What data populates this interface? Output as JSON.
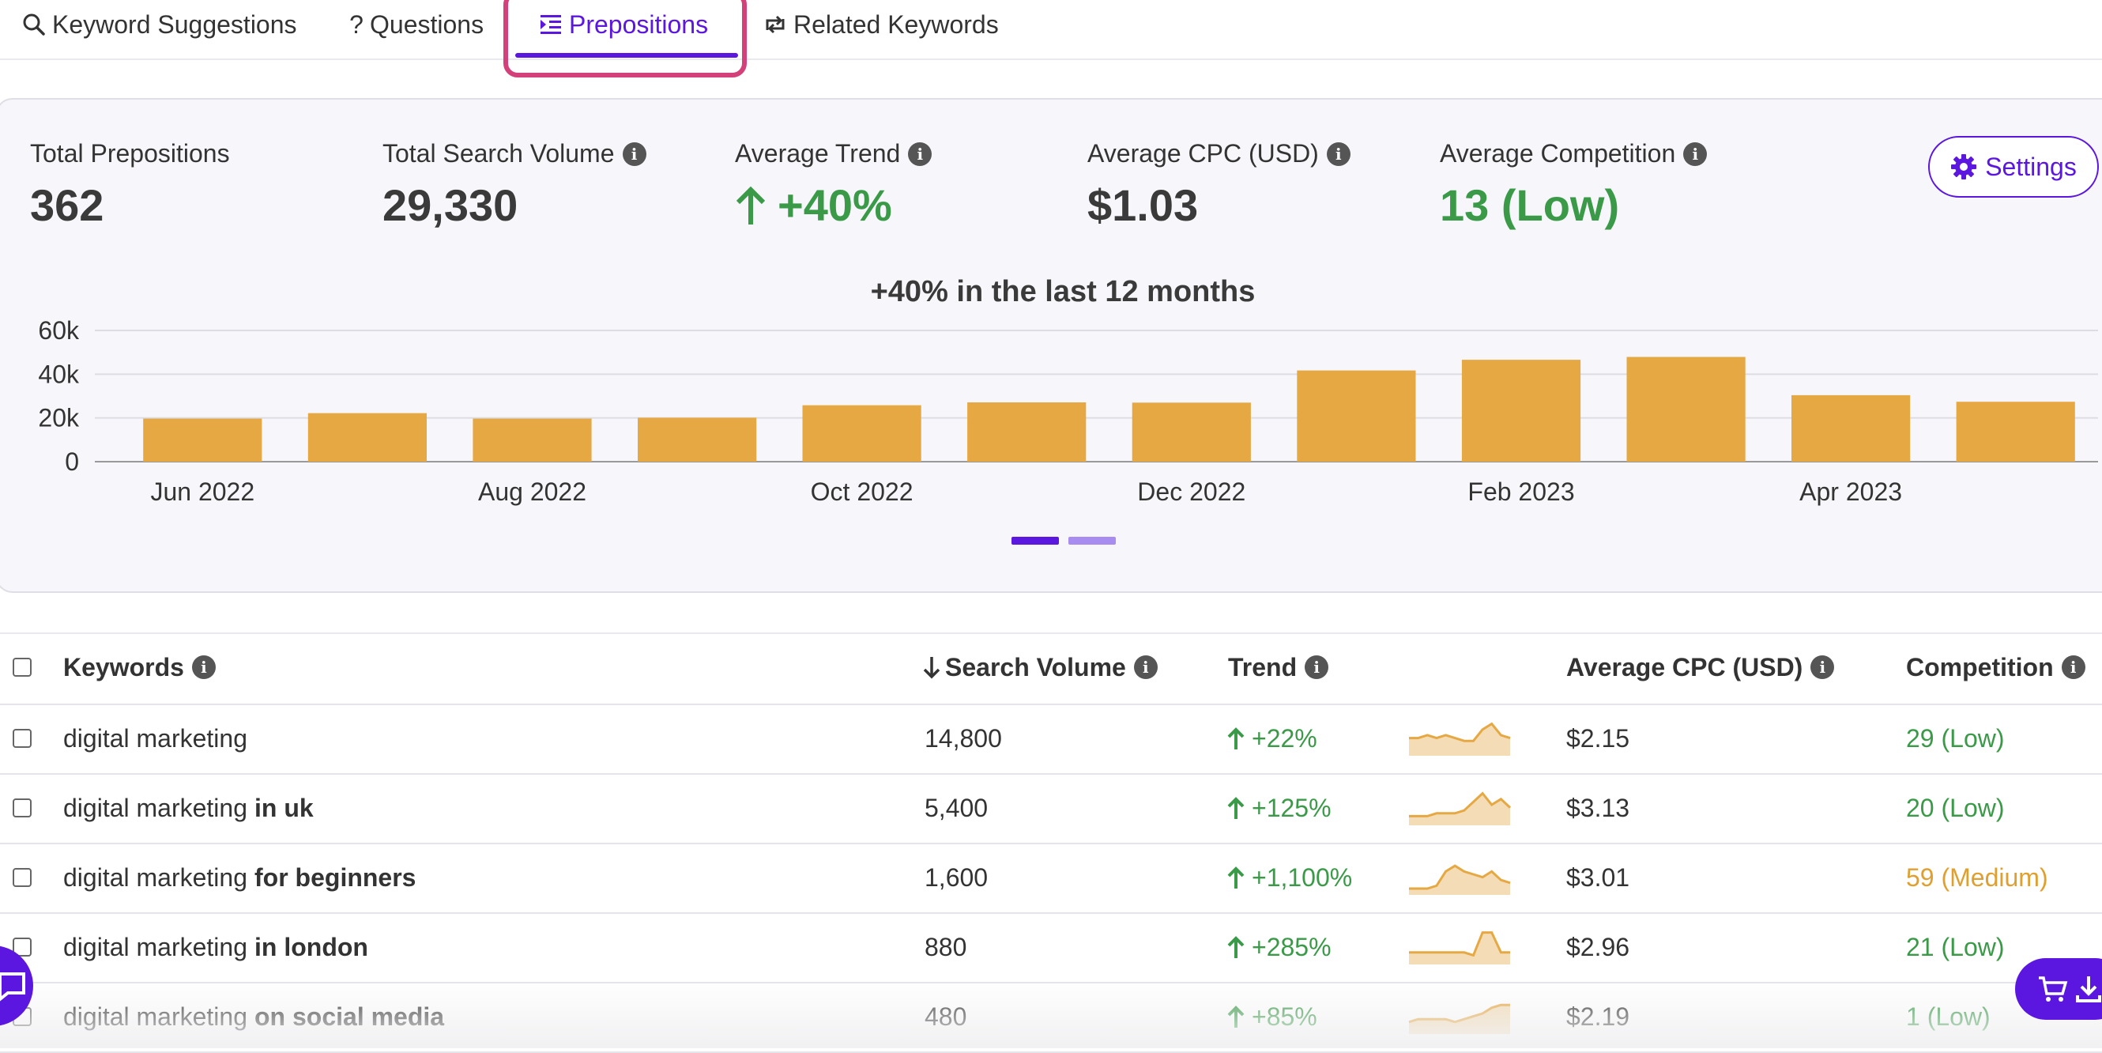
{
  "tabs": [
    {
      "label": "Keyword Suggestions",
      "icon": "search-icon"
    },
    {
      "label": "Questions",
      "icon": "question-icon"
    },
    {
      "label": "Prepositions",
      "icon": "prepositions-icon",
      "active": true
    },
    {
      "label": "Related Keywords",
      "icon": "related-icon"
    }
  ],
  "stats": {
    "total_prepositions": {
      "label": "Total Prepositions",
      "value": "362"
    },
    "total_search_volume": {
      "label": "Total Search Volume",
      "value": "29,330"
    },
    "average_trend": {
      "label": "Average Trend",
      "value": "+40%"
    },
    "average_cpc": {
      "label": "Average CPC (USD)",
      "value": "$1.03"
    },
    "average_competition": {
      "label": "Average Competition",
      "value": "13 (Low)"
    }
  },
  "settings_label": "Settings",
  "colors": {
    "accent": "#5b16e0",
    "bar": "#e6a843",
    "green": "#3a9a48",
    "orange": "#e0a030",
    "highlight": "#d4407a"
  },
  "chart_data": {
    "type": "bar",
    "title": "+40% in the last 12 months",
    "categories": [
      "Jun 2022",
      "Jul 2022",
      "Aug 2022",
      "Sep 2022",
      "Oct 2022",
      "Nov 2022",
      "Dec 2022",
      "Jan 2023",
      "Feb 2023",
      "Mar 2023",
      "Apr 2023",
      "May 2023"
    ],
    "tick_labels": [
      "Jun 2022",
      "",
      "Aug 2022",
      "",
      "Oct 2022",
      "",
      "Dec 2022",
      "",
      "Feb 2023",
      "",
      "Apr 2023",
      ""
    ],
    "values": [
      19700,
      22200,
      19700,
      20100,
      25800,
      27100,
      27000,
      41700,
      46600,
      47900,
      30400,
      27400
    ],
    "yticks": [
      "0",
      "20k",
      "40k",
      "60k"
    ],
    "ylim": [
      0,
      60000
    ],
    "grid": true
  },
  "table": {
    "headers": {
      "keywords": "Keywords",
      "search_volume": "Search Volume",
      "trend": "Trend",
      "cpc": "Average CPC (USD)",
      "competition": "Competition"
    },
    "rows": [
      {
        "kw": "digital marketing",
        "mod": "",
        "volume": "14,800",
        "trend": "+22%",
        "spark": [
          6,
          6,
          5,
          6,
          5,
          6,
          7,
          7,
          3,
          1,
          5,
          6
        ],
        "cpc": "$2.15",
        "comp": "29 (Low)",
        "level": "low"
      },
      {
        "kw": "digital marketing",
        "mod": "in uk",
        "volume": "5,400",
        "trend": "+125%",
        "spark": [
          9,
          9,
          9,
          8,
          8,
          8,
          7,
          4,
          1,
          5,
          3,
          6
        ],
        "cpc": "$3.13",
        "comp": "20 (Low)",
        "level": "low"
      },
      {
        "kw": "digital marketing",
        "mod": "for beginners",
        "volume": "1,600",
        "trend": "+1,100%",
        "spark": [
          10,
          10,
          10,
          9,
          4,
          2,
          4,
          5,
          6,
          4,
          7,
          8
        ],
        "cpc": "$3.01",
        "comp": "59 (Medium)",
        "level": "med"
      },
      {
        "kw": "digital marketing",
        "mod": "in london",
        "volume": "880",
        "trend": "+285%",
        "spark": [
          8,
          8,
          8,
          8,
          8,
          8,
          8,
          9,
          1,
          1,
          8,
          8
        ],
        "cpc": "$2.96",
        "comp": "21 (Low)",
        "level": "low"
      },
      {
        "kw": "digital marketing",
        "mod": "on social media",
        "volume": "480",
        "trend": "+85%",
        "spark": [
          8,
          7,
          7,
          7,
          7,
          8,
          7,
          6,
          5,
          3,
          2,
          2
        ],
        "cpc": "$2.19",
        "comp": "1 (Low)",
        "level": "low"
      }
    ]
  }
}
